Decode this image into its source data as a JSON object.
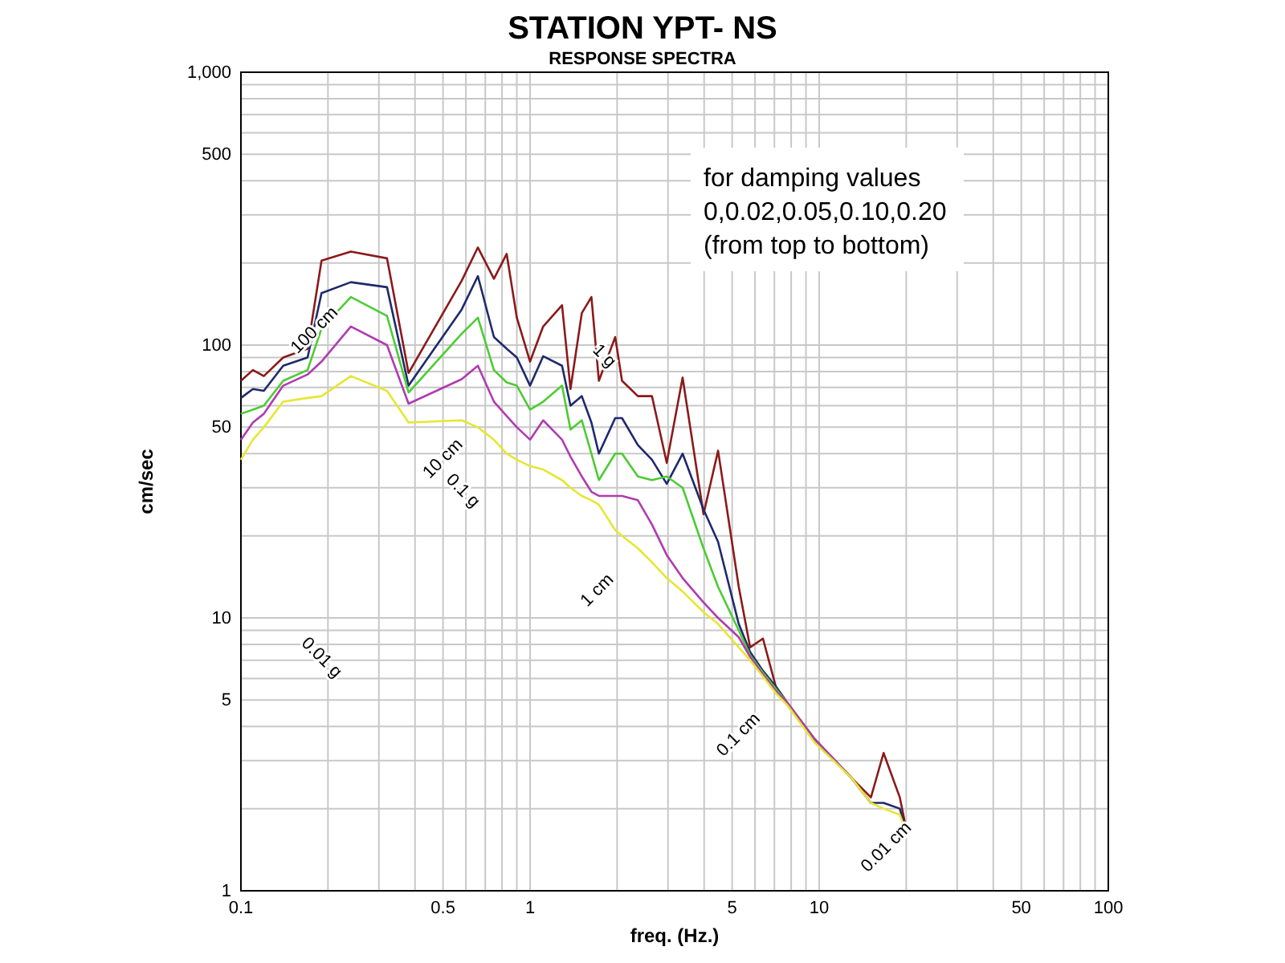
{
  "chart_data": {
    "type": "line",
    "title": "STATION YPT- NS",
    "subtitle": "RESPONSE SPECTRA",
    "xlabel": "freq. (Hz.)",
    "ylabel": "cm/sec",
    "log": "xy",
    "grid": true,
    "marker": "none",
    "line_style": "solid",
    "xlim": [
      0.1,
      100
    ],
    "ylim": [
      1,
      1000
    ],
    "xticks": [
      0.1,
      {
        "value": 0.2,
        "label": null
      },
      {
        "value": 0.3,
        "label": null
      },
      {
        "value": 0.4,
        "label": null
      },
      0.5,
      {
        "value": 0.6,
        "label": null
      },
      {
        "value": 0.7,
        "label": null
      },
      {
        "value": 0.8,
        "label": null
      },
      {
        "value": 0.9,
        "label": null
      },
      1,
      {
        "value": 2,
        "label": null
      },
      {
        "value": 3,
        "label": null
      },
      {
        "value": 4,
        "label": null
      },
      5,
      {
        "value": 6,
        "label": null
      },
      {
        "value": 7,
        "label": null
      },
      {
        "value": 8,
        "label": null
      },
      {
        "value": 9,
        "label": null
      },
      10,
      {
        "value": 20,
        "label": null
      },
      {
        "value": 30,
        "label": null
      },
      {
        "value": 40,
        "label": null
      },
      50,
      {
        "value": 60,
        "label": null
      },
      {
        "value": 70,
        "label": null
      },
      {
        "value": 80,
        "label": null
      },
      {
        "value": 90,
        "label": null
      },
      100
    ],
    "yticks": [
      1,
      {
        "value": 2,
        "label": null
      },
      {
        "value": 3,
        "label": null
      },
      {
        "value": 4,
        "label": null
      },
      5,
      {
        "value": 6,
        "label": null
      },
      {
        "value": 7,
        "label": null
      },
      {
        "value": 8,
        "label": null
      },
      {
        "value": 9,
        "label": null
      },
      10,
      {
        "value": 20,
        "label": null
      },
      {
        "value": 30,
        "label": null
      },
      {
        "value": 40,
        "label": null
      },
      50,
      {
        "value": 60,
        "label": null
      },
      {
        "value": 70,
        "label": null
      },
      {
        "value": 80,
        "label": null
      },
      {
        "value": 90,
        "label": null
      },
      100,
      {
        "value": 200,
        "label": null
      },
      {
        "value": 300,
        "label": null
      },
      {
        "value": 400,
        "label": null
      },
      500,
      {
        "value": 600,
        "label": null
      },
      {
        "value": 700,
        "label": null
      },
      {
        "value": 800,
        "label": null
      },
      {
        "value": 900,
        "label": null
      },
      {
        "value": 1000,
        "label": "1,000"
      }
    ],
    "x": [
      0.1,
      0.11,
      0.12,
      0.14,
      0.17,
      0.19,
      0.24,
      0.32,
      0.38,
      0.58,
      0.66,
      0.75,
      0.83,
      0.9,
      1.0,
      1.11,
      1.29,
      1.38,
      1.51,
      1.63,
      1.73,
      1.97,
      2.08,
      2.36,
      2.64,
      2.97,
      3.37,
      3.98,
      4.47,
      5.27,
      5.77,
      6.39,
      7.08,
      7.74,
      9.63,
      12.9,
      15.1,
      16.7,
      19,
      20.2
    ],
    "series": [
      {
        "color": "#8b1a1a",
        "values": [
          74,
          81,
          77,
          90,
          97,
          204,
          220,
          208,
          79,
          172,
          228,
          175,
          216,
          126,
          87,
          117,
          140,
          69,
          131,
          150,
          74,
          107,
          74,
          65,
          65,
          37,
          76,
          24,
          41,
          13,
          7.8,
          8.4,
          5.6,
          4.9,
          3.6,
          2.6,
          2.2,
          3.2,
          2.2,
          1.6
        ]
      },
      {
        "color": "#1f2a6b",
        "values": [
          64,
          69,
          68,
          84,
          90,
          155,
          170,
          163,
          71,
          135,
          179,
          107,
          97,
          90,
          71,
          91,
          84,
          60,
          65,
          52,
          40,
          54,
          54,
          43,
          38,
          31,
          40,
          25,
          19,
          9.5,
          7.5,
          6.4,
          5.6,
          4.9,
          3.6,
          2.6,
          2.1,
          2.1,
          2.0,
          1.6
        ]
      },
      {
        "color": "#4ccc33",
        "values": [
          56,
          58,
          60,
          74,
          81,
          115,
          150,
          128,
          67,
          110,
          126,
          81,
          73,
          71,
          58,
          62,
          71,
          49,
          53,
          40,
          32,
          40,
          40,
          33,
          32,
          33,
          30,
          18,
          13,
          9,
          7.3,
          6.3,
          5.5,
          4.9,
          3.6,
          null,
          null,
          null,
          null,
          null
        ]
      },
      {
        "color": "#b03cb0",
        "values": [
          45,
          52,
          56,
          71,
          78,
          87,
          117,
          100,
          61,
          75,
          84,
          62,
          55,
          50,
          45,
          53,
          45,
          39,
          33,
          29,
          28,
          28,
          28,
          27,
          22,
          17,
          14,
          11.4,
          10,
          8.5,
          7.2,
          6.2,
          5.4,
          4.9,
          3.6,
          2.6,
          2.1,
          null,
          null,
          null
        ]
      },
      {
        "color": "#e6e633",
        "values": [
          38,
          45,
          50,
          62,
          64,
          65,
          77,
          68,
          52,
          53,
          50,
          45,
          40,
          38,
          36,
          35,
          32,
          30,
          28,
          27,
          26,
          21,
          20,
          18,
          16,
          14,
          12.5,
          10.5,
          9.5,
          7.8,
          7,
          6.1,
          5.3,
          4.8,
          3.5,
          2.6,
          2.1,
          2.0,
          1.9,
          1.6
        ]
      }
    ],
    "annotations": [
      "for damping values\n0,0.02,0.05,0.10,0.20\n(from top to bottom)",
      "100 cm",
      "1 g",
      "10 cm",
      "0.1 g",
      "1 cm",
      "0.01 g",
      "0.1 cm",
      "0.01 cm"
    ]
  }
}
